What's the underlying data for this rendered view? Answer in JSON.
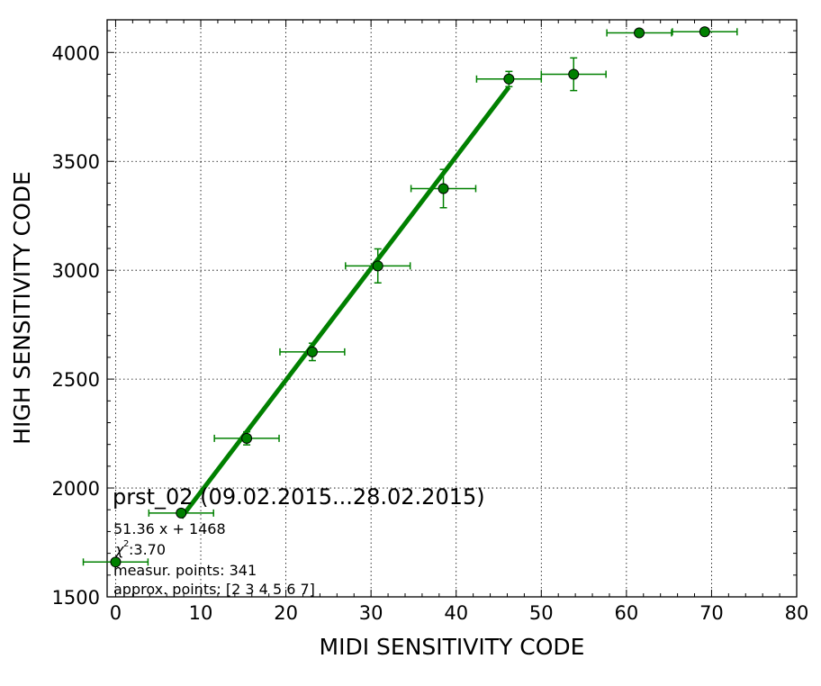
{
  "chart_data": {
    "type": "scatter",
    "xlabel": "MIDI SENSITIVITY CODE",
    "ylabel": "HIGH SENSITIVITY CODE",
    "xlim": [
      -1,
      80
    ],
    "ylim": [
      1500,
      4150
    ],
    "x_ticks": [
      0,
      10,
      20,
      30,
      40,
      50,
      60,
      70,
      80
    ],
    "y_ticks": [
      1500,
      2000,
      2500,
      3000,
      3500,
      4000
    ],
    "grid": true,
    "color": "#008000",
    "points": [
      {
        "x": 0.0,
        "y": 1660,
        "xerr": 3.8,
        "yerr": 0
      },
      {
        "x": 7.7,
        "y": 1885,
        "xerr": 3.8,
        "yerr": 0
      },
      {
        "x": 15.4,
        "y": 2228,
        "xerr": 3.8,
        "yerr": 30
      },
      {
        "x": 23.1,
        "y": 2625,
        "xerr": 3.8,
        "yerr": 40
      },
      {
        "x": 30.8,
        "y": 3020,
        "xerr": 3.8,
        "yerr": 78
      },
      {
        "x": 38.5,
        "y": 3375,
        "xerr": 3.8,
        "yerr": 88
      },
      {
        "x": 46.2,
        "y": 3878,
        "xerr": 3.8,
        "yerr": 35
      },
      {
        "x": 53.8,
        "y": 3900,
        "xerr": 3.8,
        "yerr": 75
      },
      {
        "x": 61.5,
        "y": 4090,
        "xerr": 3.8,
        "yerr": 0
      },
      {
        "x": 69.2,
        "y": 4095,
        "xerr": 3.8,
        "yerr": 0
      }
    ],
    "fit": {
      "slope": 51.36,
      "intercept": 1468,
      "x_range": [
        7.7,
        46.2
      ]
    },
    "annotation": {
      "title": "prst_02 (09.02.2015...28.02.2015)",
      "equation": "51.36 x + 1468",
      "chi_label": "χ",
      "chi_value": " :3.70",
      "points_line": "measur. points: 341",
      "approx_line": "approx. points: [2 3 4 5 6 7]"
    }
  }
}
